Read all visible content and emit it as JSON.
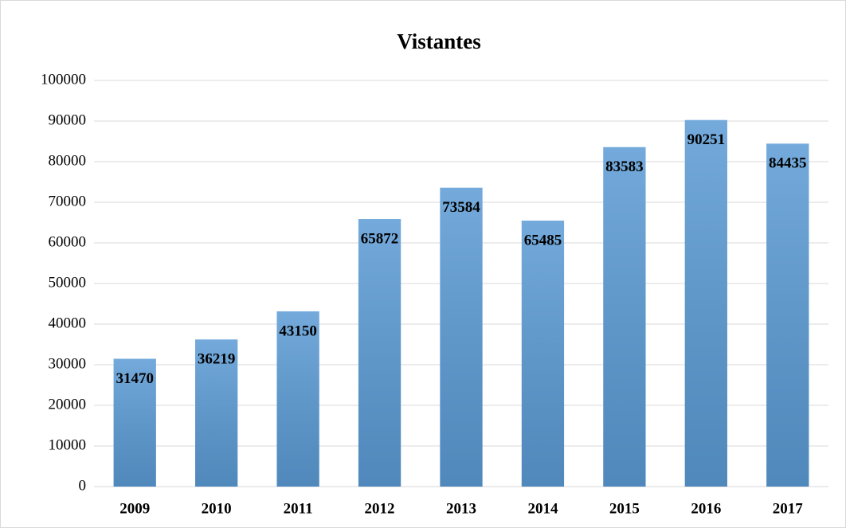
{
  "chart_data": {
    "type": "bar",
    "title": "Vistantes",
    "categories": [
      "2009",
      "2010",
      "2011",
      "2012",
      "2013",
      "2014",
      "2015",
      "2016",
      "2017"
    ],
    "values": [
      31470,
      36219,
      43150,
      65872,
      73584,
      65485,
      83583,
      90251,
      84435
    ],
    "color": "#5b9bd5",
    "ylim": [
      0,
      100000
    ],
    "yticks": [
      0,
      10000,
      20000,
      30000,
      40000,
      50000,
      60000,
      70000,
      80000,
      90000,
      100000
    ],
    "grid": true
  }
}
